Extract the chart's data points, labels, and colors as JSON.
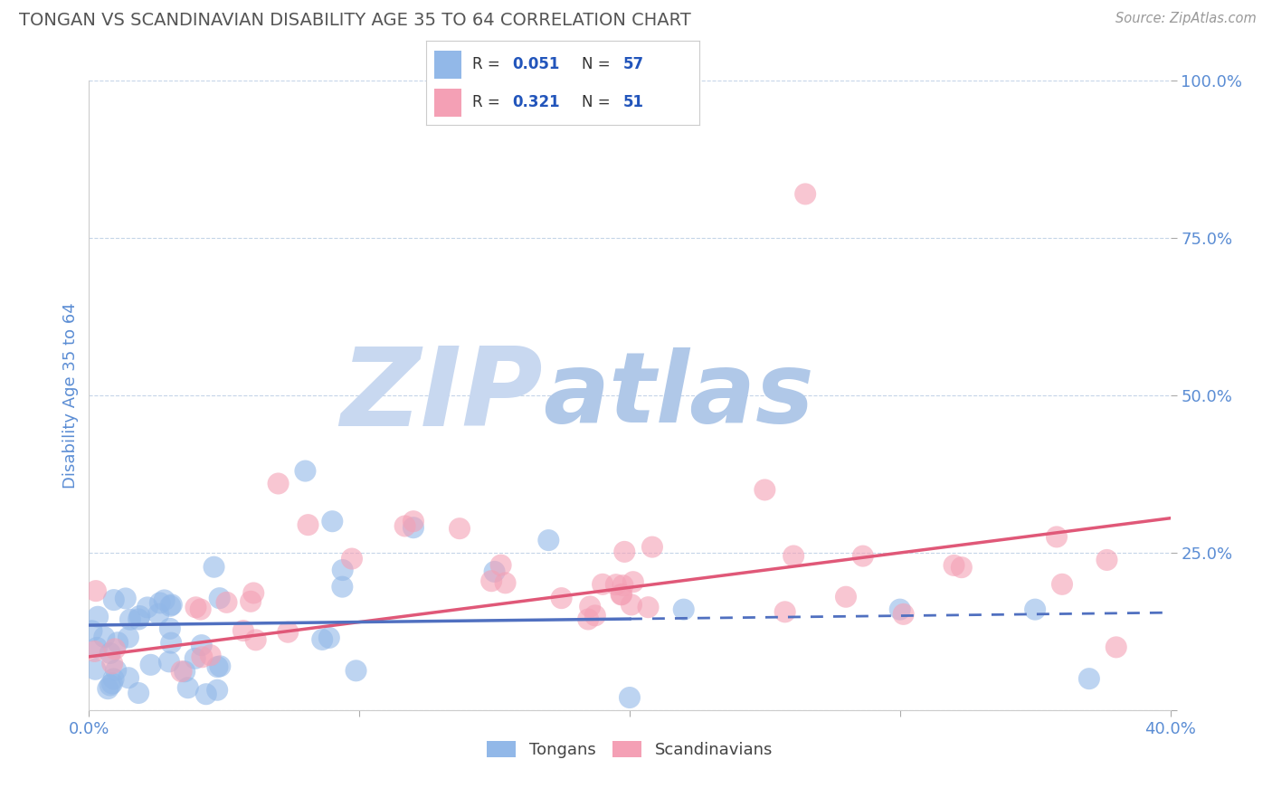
{
  "title": "TONGAN VS SCANDINAVIAN DISABILITY AGE 35 TO 64 CORRELATION CHART",
  "source_text": "Source: ZipAtlas.com",
  "ylabel": "Disability Age 35 to 64",
  "xlim": [
    0.0,
    0.4
  ],
  "ylim": [
    0.0,
    1.0
  ],
  "xticks": [
    0.0,
    0.1,
    0.2,
    0.3,
    0.4
  ],
  "yticks": [
    0.0,
    0.25,
    0.5,
    0.75,
    1.0
  ],
  "tongan_color": "#92b8e8",
  "scandinavian_color": "#f4a0b5",
  "tongan_R": 0.051,
  "tongan_N": 57,
  "scandinavian_R": 0.321,
  "scandinavian_N": 51,
  "tongan_line_color": "#5070c0",
  "scandinavian_line_color": "#e05878",
  "watermark_zip_color": "#c8d8f0",
  "watermark_atlas_color": "#b0c8e8",
  "watermark_text_zip": "ZIP",
  "watermark_text_atlas": "atlas",
  "background_color": "#ffffff",
  "title_color": "#555555",
  "axis_label_color": "#5b8dd4",
  "grid_color": "#c5d5e8",
  "legend_text_color": "#333333",
  "legend_value_color": "#2255bb",
  "tongan_line_solid_end": 0.2,
  "scandinavian_line_intercept": 0.085,
  "scandinavian_line_slope": 0.55,
  "tongan_line_intercept": 0.135,
  "tongan_line_slope": 0.05
}
